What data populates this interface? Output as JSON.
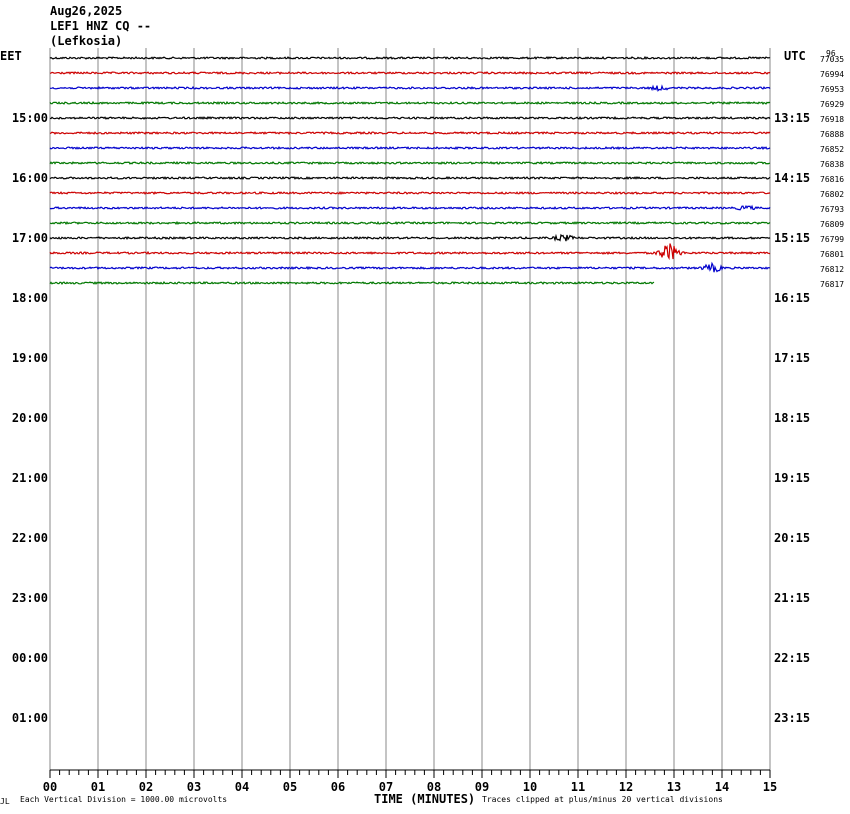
{
  "header": {
    "date": "Aug26,2025",
    "station": "LEF1 HNZ CQ --",
    "location": "(Lefkosia)"
  },
  "left_axis_label": "EET",
  "right_axis_label": "UTC",
  "corner_label": "96",
  "footer": {
    "division": "Each Vertical Division = 1000.00 microvolts",
    "xlabel": "TIME (MINUTES)",
    "clip_note": "Traces clipped at plus/minus 20 vertical divisions",
    "logo": "JL"
  },
  "colors": {
    "trace_cycle": [
      "#000000",
      "#cc0000",
      "#0000cc",
      "#007700"
    ],
    "grid": "#888888"
  },
  "chart_data": {
    "type": "line",
    "title": "LEF1 HNZ CQ --",
    "xlabel": "TIME (MINUTES)",
    "x_ticks": [
      "00",
      "01",
      "02",
      "03",
      "04",
      "05",
      "06",
      "07",
      "08",
      "09",
      "10",
      "11",
      "12",
      "13",
      "14",
      "15"
    ],
    "xlim": [
      0,
      15
    ],
    "left_hour_labels": [
      "15:00",
      "16:00",
      "17:00",
      "18:00",
      "19:00",
      "20:00",
      "21:00",
      "22:00",
      "23:00",
      "00:00",
      "01:00"
    ],
    "right_hour_labels": [
      "13:15",
      "14:15",
      "15:15",
      "16:15",
      "17:15",
      "18:15",
      "19:15",
      "20:15",
      "21:15",
      "22:15",
      "23:15"
    ],
    "rows": [
      {
        "level": "77035",
        "color": "#000000",
        "end_minute": 15
      },
      {
        "level": "76994",
        "color": "#cc0000",
        "end_minute": 15
      },
      {
        "level": "76953",
        "color": "#0000cc",
        "end_minute": 15,
        "events": [
          {
            "minute": 12.7,
            "amp": 3
          }
        ]
      },
      {
        "level": "76929",
        "color": "#007700",
        "end_minute": 15
      },
      {
        "level": "76918",
        "color": "#000000",
        "end_minute": 15
      },
      {
        "level": "76888",
        "color": "#cc0000",
        "end_minute": 15
      },
      {
        "level": "76852",
        "color": "#0000cc",
        "end_minute": 15
      },
      {
        "level": "76838",
        "color": "#007700",
        "end_minute": 15
      },
      {
        "level": "76816",
        "color": "#000000",
        "end_minute": 15
      },
      {
        "level": "76802",
        "color": "#cc0000",
        "end_minute": 15
      },
      {
        "level": "76793",
        "color": "#0000cc",
        "end_minute": 15,
        "events": [
          {
            "minute": 14.5,
            "amp": 3
          }
        ]
      },
      {
        "level": "76809",
        "color": "#007700",
        "end_minute": 15
      },
      {
        "level": "76799",
        "color": "#000000",
        "end_minute": 15,
        "events": [
          {
            "minute": 10.7,
            "amp": 4
          }
        ]
      },
      {
        "level": "76801",
        "color": "#cc0000",
        "end_minute": 15,
        "events": [
          {
            "minute": 12.9,
            "amp": 10
          }
        ]
      },
      {
        "level": "76812",
        "color": "#0000cc",
        "end_minute": 15,
        "events": [
          {
            "minute": 13.8,
            "amp": 5
          }
        ]
      },
      {
        "level": "76817",
        "color": "#007700",
        "end_minute": 12.6
      }
    ]
  }
}
